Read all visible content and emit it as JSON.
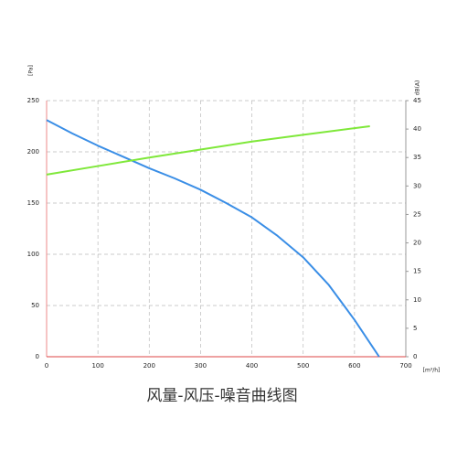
{
  "chart_data": {
    "type": "line",
    "title": "风量-风压-噪音曲线图",
    "y_label": "[Pa]",
    "y2_label": "dB(A)",
    "x_label": "[m³/h]",
    "xlim": [
      0,
      700
    ],
    "xticks": [
      0,
      100,
      200,
      300,
      400,
      500,
      600,
      700
    ],
    "ylim": [
      0,
      250
    ],
    "yticks": [
      0,
      50,
      100,
      150,
      200,
      250
    ],
    "y2lim": [
      0,
      45
    ],
    "y2ticks": [
      0,
      5,
      10,
      15,
      20,
      25,
      30,
      35,
      40,
      45
    ],
    "grid": true,
    "series": [
      {
        "color": "#3a8ee6",
        "x": [
          0,
          50,
          100,
          150,
          200,
          250,
          300,
          350,
          400,
          450,
          500,
          550,
          600,
          648
        ],
        "values": [
          231,
          218,
          206,
          195,
          184,
          174,
          163,
          150,
          136,
          118,
          97,
          70,
          36,
          0
        ]
      },
      {
        "color": "#7fe83a",
        "axis": "y2",
        "x": [
          0,
          100,
          200,
          300,
          400,
          500,
          630
        ],
        "values": [
          32,
          33.5,
          35,
          36.4,
          37.8,
          39,
          40.5
        ]
      }
    ]
  }
}
